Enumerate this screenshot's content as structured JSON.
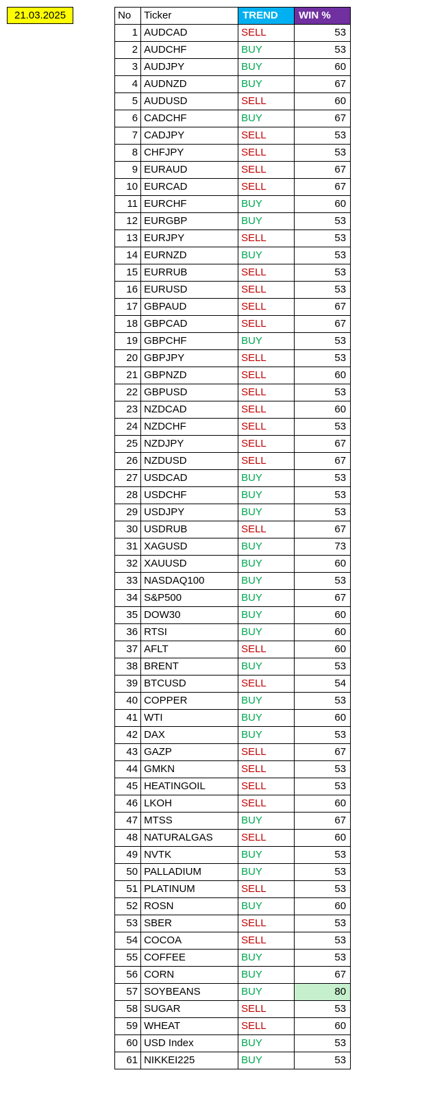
{
  "date": "21.03.2025",
  "headers": {
    "no": "No",
    "ticker": "Ticker",
    "trend": "TREND",
    "win": "WIN %"
  },
  "colors": {
    "date_bg": "#ffff00",
    "trend_header_bg": "#00b0f0",
    "win_header_bg": "#7030a0",
    "buy_color": "#00a651",
    "sell_color": "#c00000",
    "highlight_bg": "#c6efce",
    "border": "#000000"
  },
  "highlight_threshold": 80,
  "rows": [
    {
      "no": 1,
      "ticker": "AUDCAD",
      "trend": "SELL",
      "win": 53
    },
    {
      "no": 2,
      "ticker": "AUDCHF",
      "trend": "BUY",
      "win": 53
    },
    {
      "no": 3,
      "ticker": "AUDJPY",
      "trend": "BUY",
      "win": 60
    },
    {
      "no": 4,
      "ticker": "AUDNZD",
      "trend": "BUY",
      "win": 67
    },
    {
      "no": 5,
      "ticker": "AUDUSD",
      "trend": "SELL",
      "win": 60
    },
    {
      "no": 6,
      "ticker": "CADCHF",
      "trend": "BUY",
      "win": 67
    },
    {
      "no": 7,
      "ticker": "CADJPY",
      "trend": "SELL",
      "win": 53
    },
    {
      "no": 8,
      "ticker": "CHFJPY",
      "trend": "SELL",
      "win": 53
    },
    {
      "no": 9,
      "ticker": "EURAUD",
      "trend": "SELL",
      "win": 67
    },
    {
      "no": 10,
      "ticker": "EURCAD",
      "trend": "SELL",
      "win": 67
    },
    {
      "no": 11,
      "ticker": "EURCHF",
      "trend": "BUY",
      "win": 60
    },
    {
      "no": 12,
      "ticker": "EURGBP",
      "trend": "BUY",
      "win": 53
    },
    {
      "no": 13,
      "ticker": "EURJPY",
      "trend": "SELL",
      "win": 53
    },
    {
      "no": 14,
      "ticker": "EURNZD",
      "trend": "BUY",
      "win": 53
    },
    {
      "no": 15,
      "ticker": "EURRUB",
      "trend": "SELL",
      "win": 53
    },
    {
      "no": 16,
      "ticker": "EURUSD",
      "trend": "SELL",
      "win": 53
    },
    {
      "no": 17,
      "ticker": "GBPAUD",
      "trend": "SELL",
      "win": 67
    },
    {
      "no": 18,
      "ticker": "GBPCAD",
      "trend": "SELL",
      "win": 67
    },
    {
      "no": 19,
      "ticker": "GBPCHF",
      "trend": "BUY",
      "win": 53
    },
    {
      "no": 20,
      "ticker": "GBPJPY",
      "trend": "SELL",
      "win": 53
    },
    {
      "no": 21,
      "ticker": "GBPNZD",
      "trend": "SELL",
      "win": 60
    },
    {
      "no": 22,
      "ticker": "GBPUSD",
      "trend": "SELL",
      "win": 53
    },
    {
      "no": 23,
      "ticker": "NZDCAD",
      "trend": "SELL",
      "win": 60
    },
    {
      "no": 24,
      "ticker": "NZDCHF",
      "trend": "SELL",
      "win": 53
    },
    {
      "no": 25,
      "ticker": "NZDJPY",
      "trend": "SELL",
      "win": 67
    },
    {
      "no": 26,
      "ticker": "NZDUSD",
      "trend": "SELL",
      "win": 67
    },
    {
      "no": 27,
      "ticker": "USDCAD",
      "trend": "BUY",
      "win": 53
    },
    {
      "no": 28,
      "ticker": "USDCHF",
      "trend": "BUY",
      "win": 53
    },
    {
      "no": 29,
      "ticker": "USDJPY",
      "trend": "BUY",
      "win": 53
    },
    {
      "no": 30,
      "ticker": "USDRUB",
      "trend": "SELL",
      "win": 67
    },
    {
      "no": 31,
      "ticker": "XAGUSD",
      "trend": "BUY",
      "win": 73
    },
    {
      "no": 32,
      "ticker": "XAUUSD",
      "trend": "BUY",
      "win": 60
    },
    {
      "no": 33,
      "ticker": "NASDAQ100",
      "trend": "BUY",
      "win": 53
    },
    {
      "no": 34,
      "ticker": "S&P500",
      "trend": "BUY",
      "win": 67
    },
    {
      "no": 35,
      "ticker": "DOW30",
      "trend": "BUY",
      "win": 60
    },
    {
      "no": 36,
      "ticker": "RTSI",
      "trend": "BUY",
      "win": 60
    },
    {
      "no": 37,
      "ticker": "AFLT",
      "trend": "SELL",
      "win": 60
    },
    {
      "no": 38,
      "ticker": "BRENT",
      "trend": "BUY",
      "win": 53
    },
    {
      "no": 39,
      "ticker": "BTCUSD",
      "trend": "SELL",
      "win": 54
    },
    {
      "no": 40,
      "ticker": "COPPER",
      "trend": "BUY",
      "win": 53
    },
    {
      "no": 41,
      "ticker": "WTI",
      "trend": "BUY",
      "win": 60
    },
    {
      "no": 42,
      "ticker": "DAX",
      "trend": "BUY",
      "win": 53
    },
    {
      "no": 43,
      "ticker": "GAZP",
      "trend": "SELL",
      "win": 67
    },
    {
      "no": 44,
      "ticker": "GMKN",
      "trend": "SELL",
      "win": 53
    },
    {
      "no": 45,
      "ticker": "HEATINGOIL",
      "trend": "SELL",
      "win": 53
    },
    {
      "no": 46,
      "ticker": "LKOH",
      "trend": "SELL",
      "win": 60
    },
    {
      "no": 47,
      "ticker": "MTSS",
      "trend": "BUY",
      "win": 67
    },
    {
      "no": 48,
      "ticker": "NATURALGAS",
      "trend": "SELL",
      "win": 60
    },
    {
      "no": 49,
      "ticker": "NVTK",
      "trend": "BUY",
      "win": 53
    },
    {
      "no": 50,
      "ticker": "PALLADIUM",
      "trend": "BUY",
      "win": 53
    },
    {
      "no": 51,
      "ticker": "PLATINUM",
      "trend": "SELL",
      "win": 53
    },
    {
      "no": 52,
      "ticker": "ROSN",
      "trend": "BUY",
      "win": 60
    },
    {
      "no": 53,
      "ticker": "SBER",
      "trend": "SELL",
      "win": 53
    },
    {
      "no": 54,
      "ticker": "COCOA",
      "trend": "SELL",
      "win": 53
    },
    {
      "no": 55,
      "ticker": "COFFEE",
      "trend": "BUY",
      "win": 53
    },
    {
      "no": 56,
      "ticker": "CORN",
      "trend": "BUY",
      "win": 67
    },
    {
      "no": 57,
      "ticker": "SOYBEANS",
      "trend": "BUY",
      "win": 80
    },
    {
      "no": 58,
      "ticker": "SUGAR",
      "trend": "SELL",
      "win": 53
    },
    {
      "no": 59,
      "ticker": "WHEAT",
      "trend": "SELL",
      "win": 60
    },
    {
      "no": 60,
      "ticker": "USD Index",
      "trend": "BUY",
      "win": 53
    },
    {
      "no": 61,
      "ticker": "NIKKEI225",
      "trend": "BUY",
      "win": 53
    }
  ]
}
